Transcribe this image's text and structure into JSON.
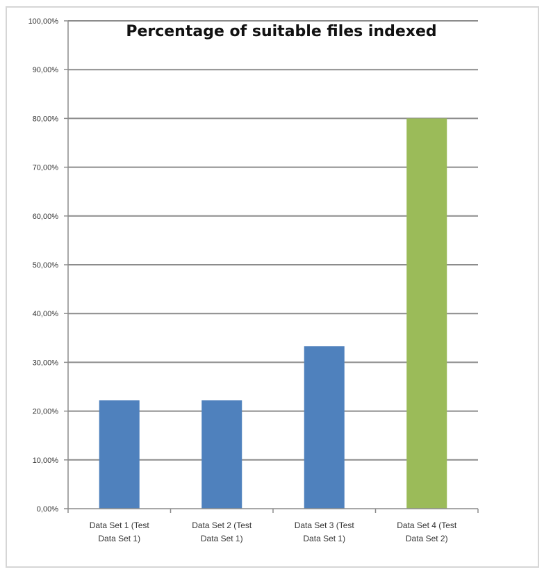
{
  "chart_data": {
    "type": "bar",
    "title": "Percentage of suitable files indexed",
    "categories": [
      [
        "Data Set 1 (Test",
        "Data Set 1)"
      ],
      [
        "Data Set 2 (Test",
        "Data Set 1)"
      ],
      [
        "Data Set 3 (Test",
        "Data Set 1)"
      ],
      [
        "Data Set 4 (Test",
        "Data Set 2)"
      ]
    ],
    "values": [
      22.2,
      22.2,
      33.3,
      80.0
    ],
    "bar_colors": [
      "#4f81bd",
      "#4f81bd",
      "#4f81bd",
      "#9bbb59"
    ],
    "ylim": [
      0,
      100
    ],
    "yticks": [
      0,
      10,
      20,
      30,
      40,
      50,
      60,
      70,
      80,
      90,
      100
    ],
    "ytick_labels": [
      "0,00%",
      "10,00%",
      "20,00%",
      "30,00%",
      "40,00%",
      "50,00%",
      "60,00%",
      "70,00%",
      "80,00%",
      "90,00%",
      "100,00%"
    ],
    "grid": true,
    "xlabel": "",
    "ylabel": ""
  }
}
